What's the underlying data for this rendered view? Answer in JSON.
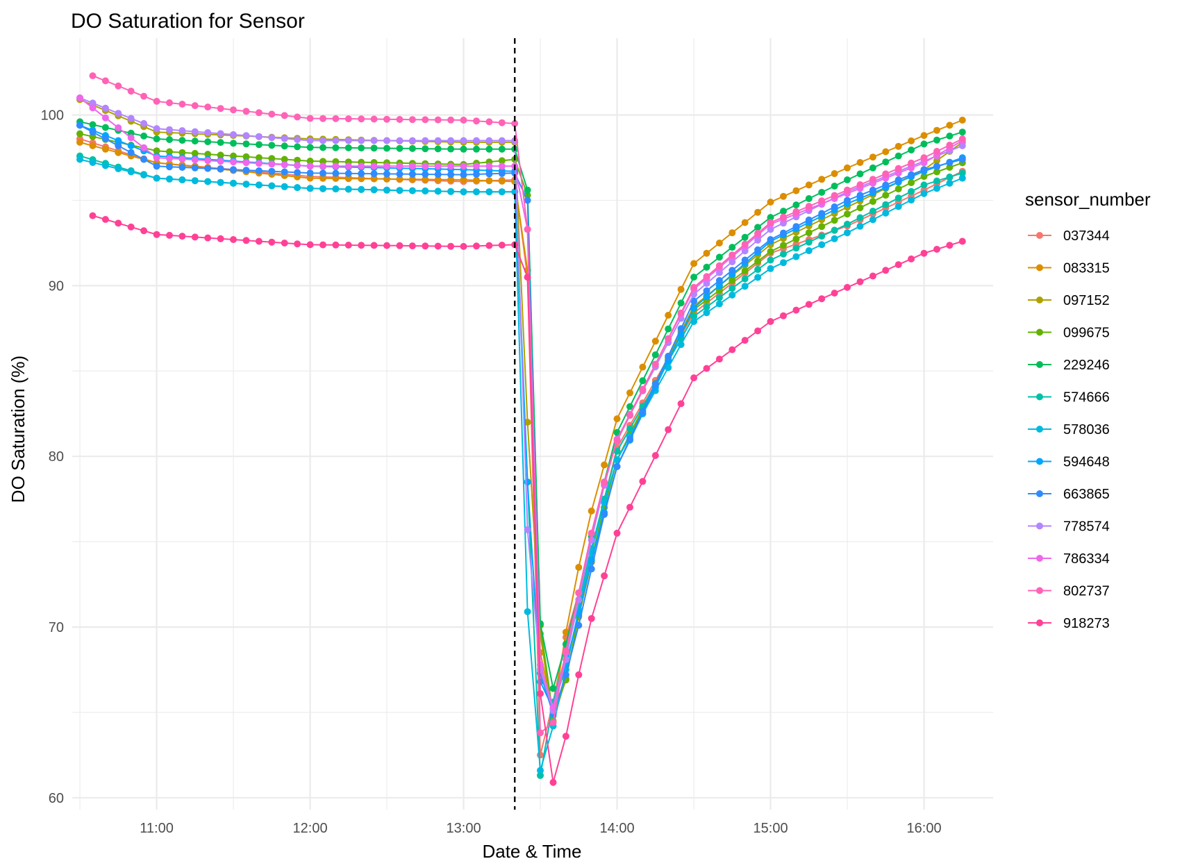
{
  "chart_data": {
    "type": "line",
    "title": "DO Saturation for Sensor",
    "xlabel": "Date & Time",
    "ylabel": "DO Saturation (%)",
    "x_ticks": [
      "11:00",
      "12:00",
      "13:00",
      "14:00",
      "15:00",
      "16:00"
    ],
    "y_ticks": [
      60,
      70,
      80,
      90,
      100
    ],
    "xlim": [
      "10:27",
      "16:27"
    ],
    "ylim": [
      59.3,
      104.5
    ],
    "grid": true,
    "legend": {
      "title": "sensor_number",
      "position": "right"
    },
    "reference_line": {
      "x": "13:20",
      "style": "dashed",
      "color": "#000000"
    },
    "sample_interval_minutes": 5,
    "series": [
      {
        "name": "037344",
        "color": "#F8766D",
        "start": "10:30",
        "anchors": [
          [
            "10:30",
            98.6
          ],
          [
            "11:00",
            97.2
          ],
          [
            "12:00",
            96.4
          ],
          [
            "13:00",
            96.1
          ],
          [
            "13:20",
            96.2
          ],
          [
            "13:25",
            90.5
          ],
          [
            "13:30",
            62.5
          ],
          [
            "13:35",
            65.6
          ],
          [
            "13:40",
            69.4
          ],
          [
            "13:45",
            72.0
          ],
          [
            "13:50",
            74.5
          ],
          [
            "13:55",
            77.5
          ],
          [
            "14:00",
            80.5
          ],
          [
            "14:30",
            88.4
          ],
          [
            "15:00",
            91.9
          ],
          [
            "15:30",
            93.5
          ],
          [
            "16:00",
            95.6
          ],
          [
            "16:15",
            96.7
          ]
        ]
      },
      {
        "name": "083315",
        "color": "#DB8E00",
        "start": "10:30",
        "anchors": [
          [
            "10:30",
            98.4
          ],
          [
            "11:00",
            97.2
          ],
          [
            "12:00",
            96.3
          ],
          [
            "13:00",
            96.2
          ],
          [
            "13:20",
            96.1
          ],
          [
            "13:25",
            90.9
          ],
          [
            "13:30",
            68.5
          ],
          [
            "13:35",
            65.0
          ],
          [
            "13:40",
            69.7
          ],
          [
            "13:45",
            73.5
          ],
          [
            "13:50",
            76.8
          ],
          [
            "13:55",
            79.5
          ],
          [
            "14:00",
            82.2
          ],
          [
            "14:30",
            91.3
          ],
          [
            "15:00",
            94.9
          ],
          [
            "15:30",
            96.9
          ],
          [
            "16:00",
            98.8
          ],
          [
            "16:15",
            99.7
          ]
        ]
      },
      {
        "name": "097152",
        "color": "#AEA200",
        "start": "10:30",
        "anchors": [
          [
            "10:30",
            100.9
          ],
          [
            "11:00",
            99.0
          ],
          [
            "12:00",
            98.6
          ],
          [
            "13:00",
            98.4
          ],
          [
            "13:20",
            98.4
          ],
          [
            "13:25",
            82.0
          ],
          [
            "13:30",
            69.6
          ],
          [
            "13:35",
            64.5
          ],
          [
            "13:40",
            67.0
          ],
          [
            "13:45",
            70.6
          ],
          [
            "13:50",
            73.8
          ],
          [
            "13:55",
            77.0
          ],
          [
            "14:00",
            79.8
          ],
          [
            "14:30",
            88.8
          ],
          [
            "15:00",
            92.4
          ],
          [
            "15:30",
            94.6
          ],
          [
            "16:00",
            96.8
          ],
          [
            "16:15",
            98.4
          ]
        ]
      },
      {
        "name": "099675",
        "color": "#64B200",
        "start": "10:30",
        "anchors": [
          [
            "10:30",
            98.9
          ],
          [
            "11:00",
            97.9
          ],
          [
            "12:00",
            97.3
          ],
          [
            "13:00",
            97.1
          ],
          [
            "13:20",
            97.4
          ],
          [
            "13:25",
            95.3
          ],
          [
            "13:30",
            70.1
          ],
          [
            "13:35",
            64.8
          ],
          [
            "13:40",
            66.9
          ],
          [
            "13:45",
            70.7
          ],
          [
            "13:50",
            74.0
          ],
          [
            "13:55",
            77.0
          ],
          [
            "14:00",
            79.8
          ],
          [
            "14:30",
            88.6
          ],
          [
            "15:00",
            92.0
          ],
          [
            "15:30",
            94.2
          ],
          [
            "16:00",
            96.4
          ],
          [
            "16:15",
            97.2
          ]
        ]
      },
      {
        "name": "229246",
        "color": "#00BD5C",
        "start": "10:30",
        "anchors": [
          [
            "10:30",
            99.6
          ],
          [
            "11:00",
            98.6
          ],
          [
            "12:00",
            98.1
          ],
          [
            "13:00",
            98.0
          ],
          [
            "13:20",
            98.0
          ],
          [
            "13:25",
            95.6
          ],
          [
            "13:30",
            70.2
          ],
          [
            "13:35",
            66.4
          ],
          [
            "13:40",
            69.0
          ],
          [
            "13:45",
            72.0
          ],
          [
            "13:50",
            75.3
          ],
          [
            "13:55",
            78.5
          ],
          [
            "14:00",
            81.4
          ],
          [
            "14:30",
            90.5
          ],
          [
            "15:00",
            94.0
          ],
          [
            "15:30",
            96.2
          ],
          [
            "16:00",
            98.3
          ],
          [
            "16:15",
            99.0
          ]
        ]
      },
      {
        "name": "574666",
        "color": "#00C1A7",
        "start": "10:30",
        "anchors": [
          [
            "10:30",
            97.6
          ],
          [
            "11:00",
            96.3
          ],
          [
            "12:00",
            95.7
          ],
          [
            "13:00",
            95.5
          ],
          [
            "13:20",
            95.5
          ],
          [
            "13:25",
            78.5
          ],
          [
            "13:30",
            61.3
          ],
          [
            "13:35",
            65.6
          ],
          [
            "13:40",
            68.4
          ],
          [
            "13:45",
            71.4
          ],
          [
            "13:50",
            74.6
          ],
          [
            "13:55",
            77.5
          ],
          [
            "14:00",
            80.3
          ],
          [
            "14:30",
            88.2
          ],
          [
            "15:00",
            91.5
          ],
          [
            "15:30",
            93.6
          ],
          [
            "16:00",
            95.9
          ],
          [
            "16:15",
            96.6
          ]
        ]
      },
      {
        "name": "578036",
        "color": "#00BADE",
        "start": "10:30",
        "anchors": [
          [
            "10:30",
            97.4
          ],
          [
            "11:00",
            96.3
          ],
          [
            "12:00",
            95.7
          ],
          [
            "13:00",
            95.5
          ],
          [
            "13:20",
            95.5
          ],
          [
            "13:25",
            70.9
          ],
          [
            "13:30",
            61.6
          ],
          [
            "13:35",
            64.2
          ],
          [
            "13:40",
            67.5
          ],
          [
            "13:45",
            71.0
          ],
          [
            "13:50",
            74.4
          ],
          [
            "13:55",
            77.3
          ],
          [
            "14:00",
            79.8
          ],
          [
            "14:30",
            87.9
          ],
          [
            "15:00",
            91.0
          ],
          [
            "15:30",
            93.1
          ],
          [
            "16:00",
            95.4
          ],
          [
            "16:15",
            96.3
          ]
        ]
      },
      {
        "name": "594648",
        "color": "#00A6FF",
        "start": "10:30",
        "anchors": [
          [
            "10:30",
            99.4
          ],
          [
            "11:00",
            97.6
          ],
          [
            "12:00",
            97.0
          ],
          [
            "13:00",
            96.8
          ],
          [
            "13:20",
            96.7
          ],
          [
            "13:25",
            78.5
          ],
          [
            "13:30",
            66.8
          ],
          [
            "13:35",
            65.2
          ],
          [
            "13:40",
            67.8
          ],
          [
            "13:45",
            70.8
          ],
          [
            "13:50",
            73.9
          ],
          [
            "13:55",
            76.7
          ],
          [
            "14:00",
            79.4
          ],
          [
            "14:30",
            88.7
          ],
          [
            "15:00",
            92.6
          ],
          [
            "15:30",
            94.8
          ],
          [
            "16:00",
            96.7
          ],
          [
            "16:15",
            97.5
          ]
        ]
      },
      {
        "name": "663865",
        "color": "#2F8BFF",
        "start": "10:30",
        "anchors": [
          [
            "10:30",
            99.4
          ],
          [
            "11:00",
            97.0
          ],
          [
            "12:00",
            96.6
          ],
          [
            "13:00",
            96.5
          ],
          [
            "13:20",
            96.6
          ],
          [
            "13:25",
            95.0
          ],
          [
            "13:30",
            67.3
          ],
          [
            "13:35",
            64.9
          ],
          [
            "13:40",
            67.2
          ],
          [
            "13:45",
            70.1
          ],
          [
            "13:50",
            73.4
          ],
          [
            "13:55",
            76.6
          ],
          [
            "14:00",
            79.4
          ],
          [
            "14:30",
            89.1
          ],
          [
            "15:00",
            92.7
          ],
          [
            "15:30",
            95.0
          ],
          [
            "16:00",
            96.8
          ],
          [
            "16:15",
            97.4
          ]
        ]
      },
      {
        "name": "778574",
        "color": "#B385FF",
        "start": "10:30",
        "anchors": [
          [
            "10:30",
            101.0
          ],
          [
            "11:00",
            99.2
          ],
          [
            "12:00",
            98.5
          ],
          [
            "13:00",
            98.5
          ],
          [
            "13:20",
            98.5
          ],
          [
            "13:25",
            75.7
          ],
          [
            "13:30",
            67.5
          ],
          [
            "13:35",
            65.1
          ],
          [
            "13:40",
            68.1
          ],
          [
            "13:45",
            71.6
          ],
          [
            "13:50",
            75.1
          ],
          [
            "13:55",
            78.3
          ],
          [
            "14:00",
            81.0
          ],
          [
            "14:30",
            89.5
          ],
          [
            "15:00",
            93.3
          ],
          [
            "15:30",
            95.5
          ],
          [
            "16:00",
            97.3
          ],
          [
            "16:15",
            98.2
          ]
        ]
      },
      {
        "name": "786334",
        "color": "#EF67EB",
        "start": "10:30",
        "anchors": [
          [
            "10:30",
            101.0
          ],
          [
            "11:00",
            97.5
          ],
          [
            "12:00",
            97.0
          ],
          [
            "13:00",
            97.0
          ],
          [
            "13:20",
            97.0
          ],
          [
            "13:25",
            93.3
          ],
          [
            "13:30",
            67.8
          ],
          [
            "13:35",
            65.3
          ],
          [
            "13:40",
            68.5
          ],
          [
            "13:45",
            72.0
          ],
          [
            "13:50",
            75.5
          ],
          [
            "13:55",
            78.4
          ],
          [
            "14:00",
            81.0
          ],
          [
            "14:30",
            89.8
          ],
          [
            "15:00",
            93.6
          ],
          [
            "15:30",
            95.4
          ],
          [
            "16:00",
            97.2
          ],
          [
            "16:15",
            98.5
          ]
        ]
      },
      {
        "name": "802737",
        "color": "#FF63B6",
        "start": "10:35",
        "anchors": [
          [
            "10:35",
            102.3
          ],
          [
            "11:00",
            100.8
          ],
          [
            "12:00",
            99.8
          ],
          [
            "13:00",
            99.7
          ],
          [
            "13:20",
            99.5
          ],
          [
            "13:25",
            93.3
          ],
          [
            "13:30",
            63.8
          ],
          [
            "13:35",
            64.4
          ],
          [
            "13:40",
            68.6
          ],
          [
            "13:45",
            72.0
          ],
          [
            "13:50",
            75.5
          ],
          [
            "13:55",
            78.5
          ],
          [
            "14:00",
            80.9
          ],
          [
            "14:30",
            89.9
          ],
          [
            "15:00",
            93.7
          ],
          [
            "15:30",
            95.6
          ],
          [
            "16:00",
            97.5
          ],
          [
            "16:15",
            98.6
          ]
        ]
      },
      {
        "name": "918273",
        "color": "#FF4196",
        "start": "10:35",
        "anchors": [
          [
            "10:35",
            94.1
          ],
          [
            "11:00",
            93.0
          ],
          [
            "12:00",
            92.4
          ],
          [
            "13:00",
            92.3
          ],
          [
            "13:20",
            92.4
          ],
          [
            "13:25",
            90.5
          ],
          [
            "13:30",
            66.1
          ],
          [
            "13:35",
            60.9
          ],
          [
            "13:40",
            63.6
          ],
          [
            "13:45",
            67.2
          ],
          [
            "13:50",
            70.5
          ],
          [
            "13:55",
            73.0
          ],
          [
            "14:00",
            75.5
          ],
          [
            "14:30",
            84.6
          ],
          [
            "15:00",
            87.9
          ],
          [
            "15:30",
            89.9
          ],
          [
            "16:00",
            91.9
          ],
          [
            "16:15",
            92.6
          ]
        ]
      }
    ]
  }
}
